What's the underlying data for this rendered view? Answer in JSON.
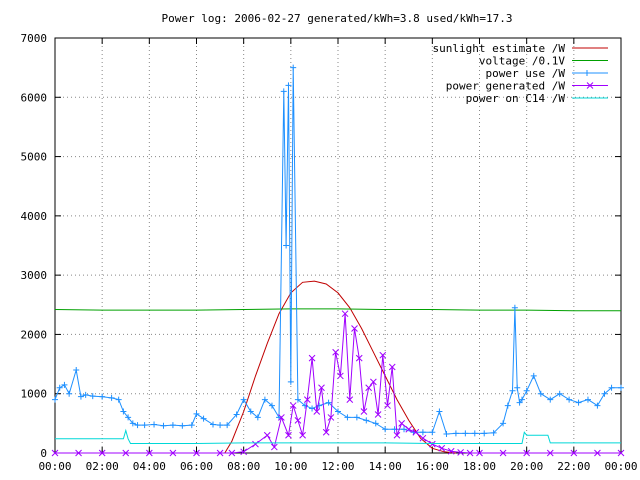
{
  "chart_data": {
    "type": "line",
    "title": "Power log: 2006-02-27 generated/kWh=3.8 used/kWh=17.3",
    "xlabel": "",
    "ylabel": "",
    "xlim": [
      0,
      24
    ],
    "ylim": [
      0,
      7000
    ],
    "grid": true,
    "legend_position": "top-right",
    "x_tick_labels": [
      "00:00",
      "02:00",
      "04:00",
      "06:00",
      "08:00",
      "10:00",
      "12:00",
      "14:00",
      "16:00",
      "18:00",
      "20:00",
      "22:00",
      "00:00"
    ],
    "x_tick_hours": [
      0,
      2,
      4,
      6,
      8,
      10,
      12,
      14,
      16,
      18,
      20,
      22,
      24
    ],
    "y_ticks": [
      0,
      1000,
      2000,
      3000,
      4000,
      5000,
      6000,
      7000
    ],
    "y_tick_labels": [
      "0",
      "1000",
      "2000",
      "3000",
      "4000",
      "5000",
      "6000",
      "7000"
    ],
    "series": [
      {
        "name": "sunlight estimate /W",
        "color": "#c00000",
        "marker": "none",
        "x": [
          7.2,
          7.5,
          8.0,
          8.5,
          9.0,
          9.5,
          10.0,
          10.5,
          11.0,
          11.5,
          12.0,
          12.5,
          13.0,
          13.5,
          14.0,
          14.5,
          15.0,
          15.5,
          16.0,
          16.5,
          17.0
        ],
        "y": [
          0,
          200,
          700,
          1300,
          1850,
          2350,
          2700,
          2880,
          2900,
          2850,
          2700,
          2450,
          2100,
          1700,
          1300,
          900,
          550,
          250,
          80,
          20,
          0
        ]
      },
      {
        "name": "voltage /0.1V",
        "color": "#00a000",
        "marker": "none",
        "x": [
          0,
          2,
          4,
          6,
          8,
          10,
          12,
          14,
          16,
          18,
          20,
          22,
          24
        ],
        "y": [
          2420,
          2410,
          2410,
          2410,
          2420,
          2430,
          2430,
          2420,
          2420,
          2410,
          2410,
          2400,
          2400
        ]
      },
      {
        "name": "power use /W",
        "color": "#1e90ff",
        "marker": "plus",
        "x": [
          0,
          0.2,
          0.4,
          0.6,
          0.9,
          1.1,
          1.3,
          1.6,
          2.0,
          2.4,
          2.7,
          2.9,
          3.1,
          3.3,
          3.5,
          3.8,
          4.2,
          4.6,
          5.0,
          5.4,
          5.8,
          6.0,
          6.3,
          6.7,
          7.0,
          7.3,
          7.7,
          8.0,
          8.3,
          8.6,
          8.9,
          9.2,
          9.5,
          9.7,
          9.8,
          9.9,
          10.0,
          10.1,
          10.3,
          10.6,
          10.9,
          11.2,
          11.6,
          12.0,
          12.4,
          12.8,
          13.2,
          13.6,
          14.0,
          14.4,
          14.8,
          15.2,
          15.6,
          16.0,
          16.3,
          16.6,
          17.0,
          17.4,
          17.8,
          18.2,
          18.6,
          19.0,
          19.2,
          19.4,
          19.5,
          19.6,
          19.7,
          19.8,
          20.0,
          20.3,
          20.6,
          21.0,
          21.4,
          21.8,
          22.2,
          22.6,
          23.0,
          23.3,
          23.6,
          24.0
        ],
        "y": [
          900,
          1100,
          1150,
          1000,
          1400,
          950,
          980,
          960,
          950,
          930,
          900,
          700,
          600,
          500,
          470,
          470,
          480,
          460,
          470,
          460,
          470,
          660,
          580,
          480,
          470,
          470,
          650,
          900,
          700,
          600,
          900,
          800,
          600,
          6100,
          3500,
          6200,
          1200,
          6500,
          900,
          800,
          750,
          800,
          850,
          700,
          600,
          600,
          550,
          500,
          400,
          400,
          400,
          350,
          350,
          350,
          700,
          320,
          330,
          330,
          330,
          330,
          340,
          500,
          800,
          1050,
          2450,
          1100,
          850,
          900,
          1050,
          1300,
          1000,
          900,
          1000,
          900,
          850,
          900,
          800,
          1000,
          1100,
          1100
        ]
      },
      {
        "name": "power generated /W",
        "color": "#a000ff",
        "marker": "x",
        "x": [
          0,
          1,
          2,
          3,
          4,
          5,
          6,
          7,
          7.5,
          8,
          8.5,
          9,
          9.3,
          9.6,
          9.9,
          10.1,
          10.3,
          10.5,
          10.7,
          10.9,
          11.1,
          11.3,
          11.5,
          11.7,
          11.9,
          12.1,
          12.3,
          12.5,
          12.7,
          12.9,
          13.1,
          13.3,
          13.5,
          13.7,
          13.9,
          14.1,
          14.3,
          14.5,
          14.7,
          15,
          15.3,
          15.6,
          16,
          16.4,
          16.8,
          17.2,
          17.6,
          18,
          19,
          20,
          21,
          22,
          23,
          24
        ],
        "y": [
          0,
          0,
          0,
          0,
          0,
          0,
          0,
          0,
          0,
          20,
          150,
          300,
          100,
          600,
          300,
          800,
          550,
          300,
          900,
          1600,
          700,
          1100,
          350,
          600,
          1700,
          1300,
          2350,
          900,
          2100,
          1600,
          700,
          1100,
          1200,
          650,
          1650,
          800,
          1450,
          300,
          500,
          400,
          350,
          250,
          150,
          80,
          30,
          10,
          0,
          0,
          0,
          0,
          0,
          0,
          0,
          0
        ]
      },
      {
        "name": "power on C14 /W",
        "color": "#00d8d8",
        "marker": "none",
        "x": [
          0,
          2.9,
          3.0,
          3.1,
          3.2,
          4,
          6,
          8,
          10,
          12,
          14,
          16,
          18,
          19.8,
          19.9,
          20.0,
          20.1,
          20.9,
          21.0,
          22,
          24
        ],
        "y": [
          240,
          240,
          380,
          240,
          160,
          160,
          160,
          170,
          170,
          170,
          170,
          160,
          160,
          160,
          350,
          300,
          300,
          300,
          170,
          170,
          170
        ]
      }
    ]
  }
}
